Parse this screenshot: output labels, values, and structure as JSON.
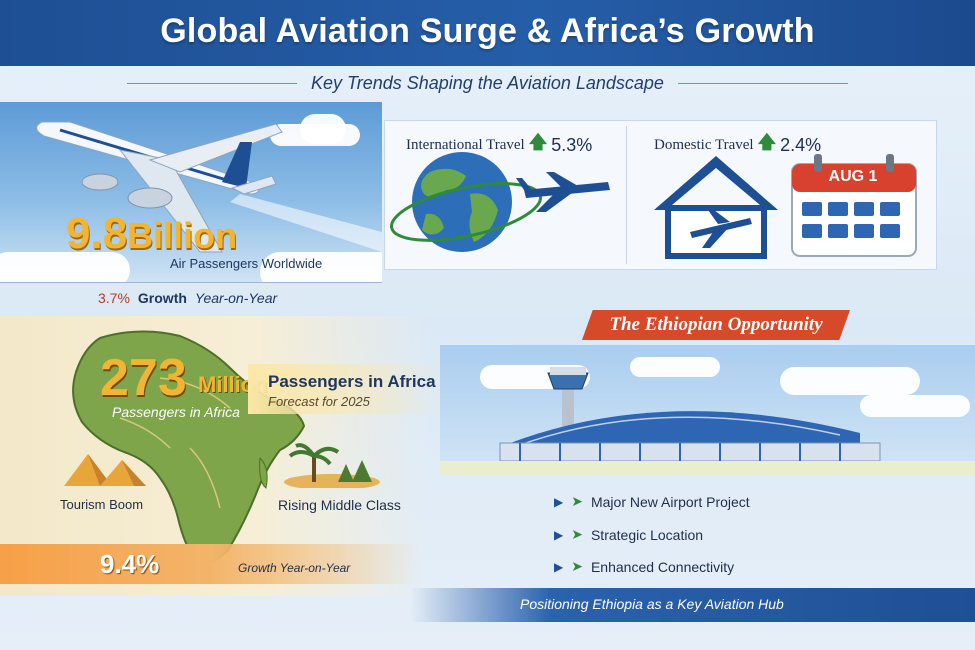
{
  "header": {
    "title": "Global Aviation Surge & Africa’s Growth",
    "subtitle": "Key Trends Shaping the Aviation Landscape"
  },
  "global": {
    "big_number": "9.8",
    "big_unit": "Billion",
    "big_caption": "Air Passengers Worldwide",
    "growth_pct": "3.7%",
    "growth_word": "Growth",
    "growth_suffix": "Year-on-Year"
  },
  "travel": {
    "international_label": "International Travel",
    "international_value": "5.3%",
    "domestic_label": "Domestic Travel",
    "domestic_value": "2.4%",
    "calendar_date": "AUG 1",
    "up_arrow": "🡅"
  },
  "africa": {
    "number": "273",
    "unit": "Million",
    "map_caption": "Passengers in Africa",
    "label": "Passengers in Africa",
    "forecast": "Forecast for 2025",
    "tourism": "Tourism Boom",
    "middle_class": "Rising Middle Class",
    "growth_pct": "9.4%",
    "growth_text": "Growth Year-on-Year"
  },
  "ethiopia": {
    "banner": "The Ethiopian Opportunity",
    "bullets": [
      "Major New Airport Project",
      "Strategic Location",
      "Enhanced Connectivity"
    ],
    "footer": "Positioning Ethiopia as a Key Aviation Hub"
  },
  "colors": {
    "header_blue": "#1e4f94",
    "gold": "#f3b431",
    "green_arrow": "#2f8a3c",
    "banner_red": "#d64a2a",
    "calendar_red": "#d8412e"
  },
  "icons": [
    "airplane-icon",
    "globe-icon",
    "house-icon",
    "calendar-icon",
    "africa-map-icon",
    "pyramids-icon",
    "palm-tree-icon",
    "airport-terminal-icon",
    "control-tower-icon",
    "arrow-icon"
  ]
}
